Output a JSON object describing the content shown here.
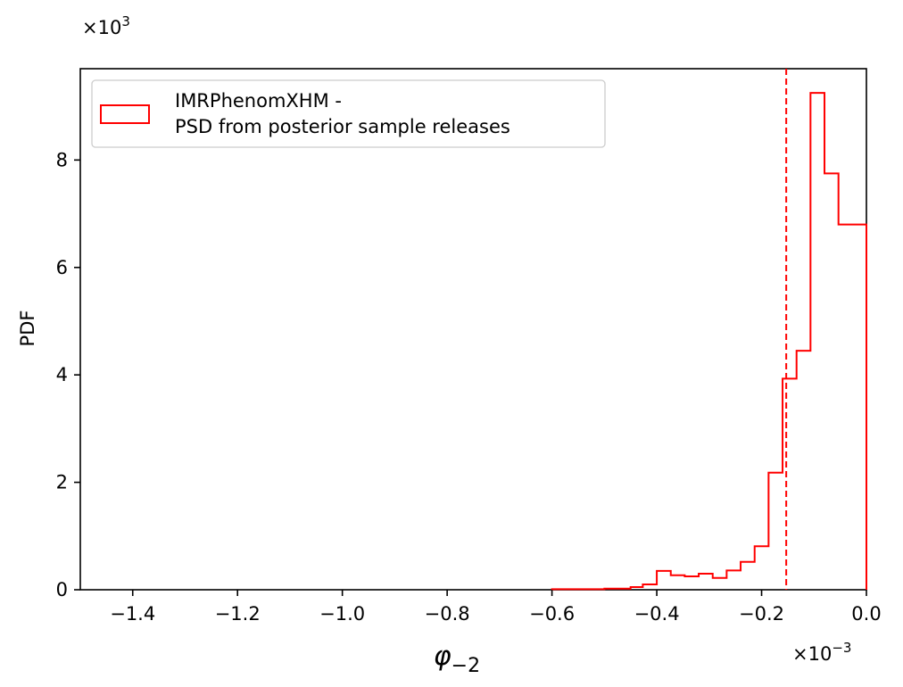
{
  "chart_data": {
    "type": "histogram",
    "title": "",
    "xlabel": "φ−2",
    "xlabel_base": "φ",
    "xlabel_sub": "−2",
    "ylabel": "PDF",
    "x_scale_label": "×10",
    "x_scale_exp": "−3",
    "y_scale_label": "×10",
    "y_scale_exp": "3",
    "xlim": [
      -1.5,
      0.0
    ],
    "ylim": [
      0,
      9.7
    ],
    "xticks": [
      -1.4,
      -1.2,
      -1.0,
      -0.8,
      -0.6,
      -0.4,
      -0.2,
      0.0
    ],
    "xtick_labels": [
      "−1.4",
      "−1.2",
      "−1.0",
      "−0.8",
      "−0.6",
      "−0.4",
      "−0.2",
      "0.0"
    ],
    "yticks": [
      0,
      2,
      4,
      6,
      8
    ],
    "ytick_labels": [
      "0",
      "2",
      "4",
      "6",
      "8"
    ],
    "grid": false,
    "legend_position": "upper-left",
    "series": [
      {
        "name": "IMRPhenomXHM -\nPSD from posterior sample releases",
        "legend_lines": [
          "IMRPhenomXHM -",
          "PSD from posterior sample releases"
        ],
        "color": "#ff0000",
        "style": "step",
        "bin_edges": [
          -0.6,
          -0.5,
          -0.45,
          -0.4267,
          -0.4,
          -0.3733,
          -0.3467,
          -0.32,
          -0.2933,
          -0.2667,
          -0.24,
          -0.2133,
          -0.1867,
          -0.16,
          -0.1333,
          -0.1067,
          -0.08,
          -0.0533,
          -0.0267,
          0.0
        ],
        "values": [
          0.01,
          0.02,
          0.05,
          0.1,
          0.35,
          0.27,
          0.25,
          0.3,
          0.22,
          0.36,
          0.52,
          0.81,
          2.18,
          3.93,
          4.45,
          9.25,
          7.75,
          6.8,
          6.8
        ]
      }
    ],
    "reference_line": {
      "x": -0.153,
      "style": "dashed",
      "color": "#ff0000"
    }
  }
}
